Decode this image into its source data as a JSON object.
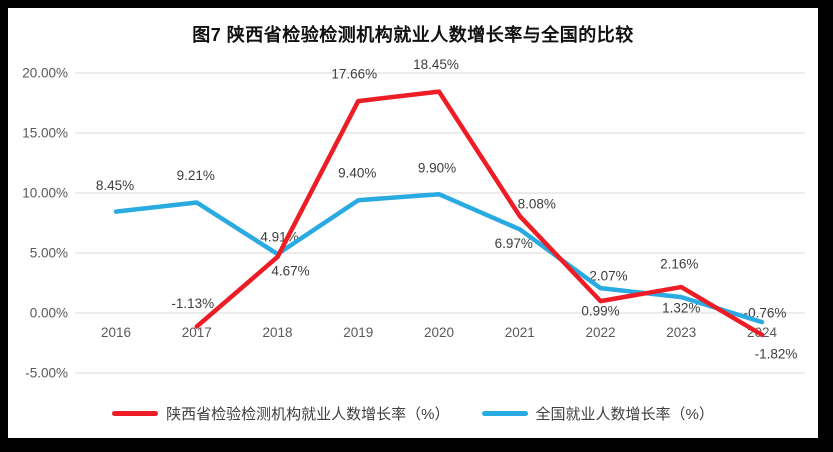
{
  "chart_data": {
    "type": "line",
    "title": "图7 陕西省检验检测机构就业人数增长率与全国的比较",
    "categories": [
      "2016",
      "2017",
      "2018",
      "2019",
      "2020",
      "2021",
      "2022",
      "2023",
      "2024"
    ],
    "y_axis": {
      "ticks": [
        "20.00%",
        "15.00%",
        "10.00%",
        "5.00%",
        "0.00%",
        "-5.00%"
      ],
      "tick_values": [
        20,
        15,
        10,
        5,
        0,
        -5
      ],
      "min": -5,
      "max": 20
    },
    "grid": true,
    "gridline_color": "#d9d9d9",
    "legend_position": "bottom",
    "series": [
      {
        "id": "shaanxi-institutions",
        "name": "陕西省检验检测机构就业人数增长率（%）",
        "color": "#EE1C25",
        "values": [
          null,
          -1.13,
          4.67,
          17.66,
          18.45,
          8.08,
          0.99,
          2.16,
          -1.82
        ],
        "labels": [
          null,
          "-1.13%",
          "4.67%",
          "17.66%",
          "18.45%",
          "8.08%",
          "0.99%",
          "2.16%",
          "-1.82%"
        ],
        "label_offsets": [
          null,
          [
            -4,
            -23
          ],
          [
            13,
            14
          ],
          [
            -4,
            -27
          ],
          [
            -3,
            -27
          ],
          [
            17,
            -12
          ],
          [
            0,
            10
          ],
          [
            -2,
            -23
          ],
          [
            14,
            19
          ]
        ]
      },
      {
        "id": "national",
        "name": "全国就业人数增长率（%）",
        "color": "#29ABE2",
        "values": [
          8.45,
          9.21,
          4.91,
          9.4,
          9.9,
          6.97,
          2.07,
          1.32,
          -0.76
        ],
        "labels": [
          "8.45%",
          "9.21%",
          "4.91%",
          "9.40%",
          "9.90%",
          "6.97%",
          "2.07%",
          "1.32%",
          "-0.76%"
        ],
        "label_offsets": [
          [
            -1,
            -26
          ],
          [
            -1,
            -27
          ],
          [
            2,
            -17
          ],
          [
            -1,
            -27
          ],
          [
            -2,
            -26
          ],
          [
            -6,
            14
          ],
          [
            8,
            -12
          ],
          [
            0,
            11
          ],
          [
            3,
            -9
          ]
        ]
      }
    ]
  }
}
